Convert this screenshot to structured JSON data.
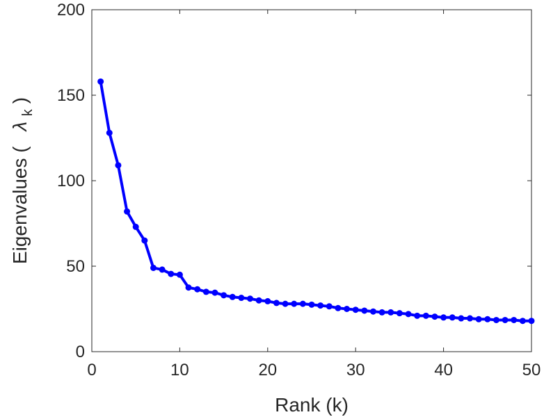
{
  "chart_data": {
    "type": "line",
    "title": "",
    "xlabel": "Rank (k)",
    "ylabel": {
      "prefix": "Eigenvalues (",
      "symbol": "λ",
      "subscript": "k",
      "suffix": ")"
    },
    "xlim": [
      0,
      50
    ],
    "ylim": [
      0,
      200
    ],
    "xticks": [
      0,
      10,
      20,
      30,
      40,
      50
    ],
    "yticks": [
      0,
      50,
      100,
      150,
      200
    ],
    "grid": false,
    "legend": "none",
    "series": [
      {
        "color": "#0000ff",
        "marker": "circle",
        "x": [
          1,
          2,
          3,
          4,
          5,
          6,
          7,
          8,
          9,
          10,
          11,
          12,
          13,
          14,
          15,
          16,
          17,
          18,
          19,
          20,
          21,
          22,
          23,
          24,
          25,
          26,
          27,
          28,
          29,
          30,
          31,
          32,
          33,
          34,
          35,
          36,
          37,
          38,
          39,
          40,
          41,
          42,
          43,
          44,
          45,
          46,
          47,
          48,
          49,
          50
        ],
        "values": [
          158,
          128,
          109,
          82,
          73,
          65,
          49,
          48,
          45.5,
          45,
          37.5,
          36.5,
          35,
          34.5,
          33,
          32,
          31.5,
          31,
          30,
          29.5,
          28.5,
          28,
          28,
          28,
          27.5,
          27,
          26.5,
          25.5,
          25,
          24.5,
          24,
          23.5,
          23,
          23,
          22.5,
          22,
          21,
          21,
          20.5,
          20,
          20,
          19.5,
          19.5,
          19,
          19,
          18.5,
          18.5,
          18.5,
          18,
          18
        ]
      }
    ]
  }
}
